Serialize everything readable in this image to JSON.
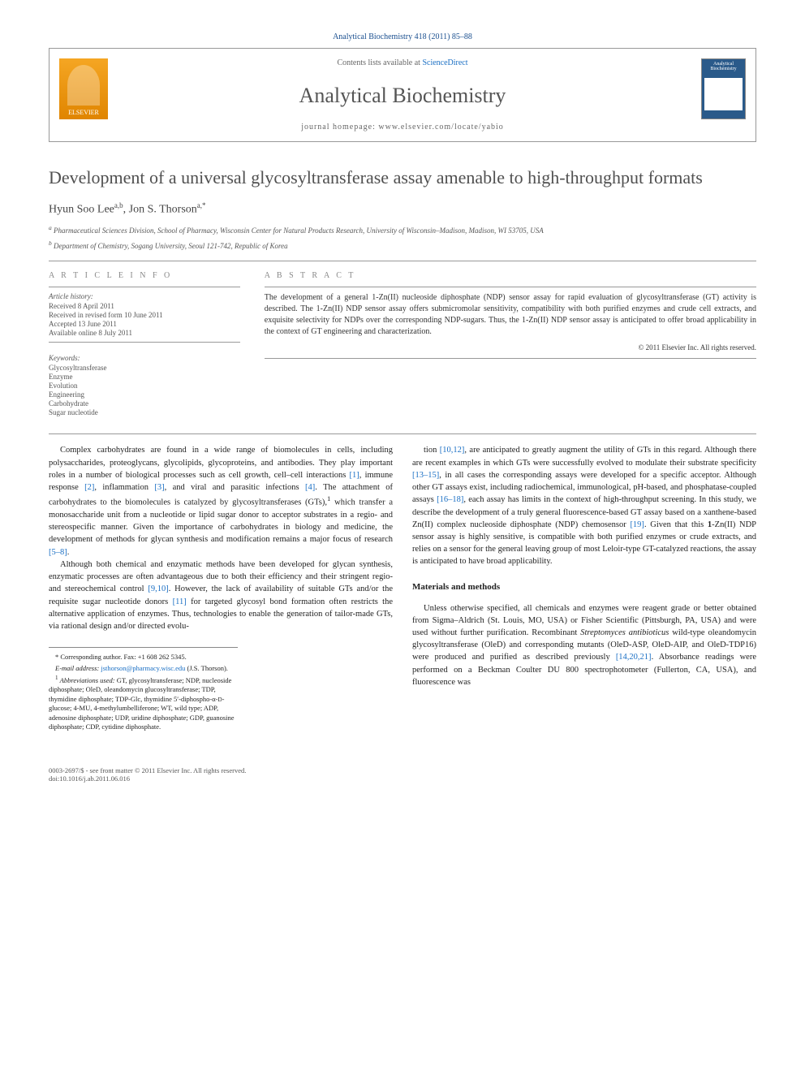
{
  "journal": {
    "citation": "Analytical Biochemistry 418 (2011) 85–88",
    "contents_prefix": "Contents lists available at ",
    "contents_link": "ScienceDirect",
    "name": "Analytical Biochemistry",
    "homepage_label": "journal homepage: www.elsevier.com/locate/yabio",
    "publisher": "ELSEVIER",
    "cover_label": "Analytical Biochemistry"
  },
  "article": {
    "title": "Development of a universal glycosyltransferase assay amenable to high-throughput formats",
    "authors_html": "Hyun Soo Lee",
    "author1": "Hyun Soo Lee",
    "author1_sup": "a,b",
    "author2": "Jon S. Thorson",
    "author2_sup": "a,*",
    "affiliations": {
      "a": "Pharmaceutical Sciences Division, School of Pharmacy, Wisconsin Center for Natural Products Research, University of Wisconsin–Madison, Madison, WI 53705, USA",
      "b": "Department of Chemistry, Sogang University, Seoul 121-742, Republic of Korea"
    }
  },
  "info": {
    "heading": "A R T I C L E   I N F O",
    "history_label": "Article history:",
    "history": [
      "Received 8 April 2011",
      "Received in revised form 10 June 2011",
      "Accepted 13 June 2011",
      "Available online 8 July 2011"
    ],
    "keywords_label": "Keywords:",
    "keywords": [
      "Glycosyltransferase",
      "Enzyme",
      "Evolution",
      "Engineering",
      "Carbohydrate",
      "Sugar nucleotide"
    ]
  },
  "abstract": {
    "heading": "A B S T R A C T",
    "text": "The development of a general 1-Zn(II) nucleoside diphosphate (NDP) sensor assay for rapid evaluation of glycosyltransferase (GT) activity is described. The 1-Zn(II) NDP sensor assay offers submicromolar sensitivity, compatibility with both purified enzymes and crude cell extracts, and exquisite selectivity for NDPs over the corresponding NDP-sugars. Thus, the 1-Zn(II) NDP sensor assay is anticipated to offer broad applicability in the context of GT engineering and characterization.",
    "copyright": "© 2011 Elsevier Inc. All rights reserved."
  },
  "body": {
    "col1_p1": "Complex carbohydrates are found in a wide range of biomolecules in cells, including polysaccharides, proteoglycans, glycolipids, glycoproteins, and antibodies. They play important roles in a number of biological processes such as cell growth, cell–cell interactions [1], immune response [2], inflammation [3], and viral and parasitic infections [4]. The attachment of carbohydrates to the biomolecules is catalyzed by glycosyltransferases (GTs),¹ which transfer a monosaccharide unit from a nucleotide or lipid sugar donor to acceptor substrates in a regio- and stereospecific manner. Given the importance of carbohydrates in biology and medicine, the development of methods for glycan synthesis and modification remains a major focus of research [5–8].",
    "col1_p2": "Although both chemical and enzymatic methods have been developed for glycan synthesis, enzymatic processes are often advantageous due to both their efficiency and their stringent regio- and stereochemical control [9,10]. However, the lack of availability of suitable GTs and/or the requisite sugar nucleotide donors [11] for targeted glycosyl bond formation often restricts the alternative application of enzymes. Thus, technologies to enable the generation of tailor-made GTs, via rational design and/or directed evolu-",
    "col2_p1": "tion [10,12], are anticipated to greatly augment the utility of GTs in this regard. Although there are recent examples in which GTs were successfully evolved to modulate their substrate specificity [13–15], in all cases the corresponding assays were developed for a specific acceptor. Although other GT assays exist, including radiochemical, immunological, pH-based, and phosphatase-coupled assays [16–18], each assay has limits in the context of high-throughput screening. In this study, we describe the development of a truly general fluorescence-based GT assay based on a xanthene-based Zn(II) complex nucleoside diphosphate (NDP) chemosensor [19]. Given that this 1-Zn(II) NDP sensor assay is highly sensitive, is compatible with both purified enzymes or crude extracts, and relies on a sensor for the general leaving group of most Leloir-type GT-catalyzed reactions, the assay is anticipated to have broad applicability.",
    "materials_head": "Materials and methods",
    "col2_p2": "Unless otherwise specified, all chemicals and enzymes were reagent grade or better obtained from Sigma–Aldrich (St. Louis, MO, USA) or Fisher Scientific (Pittsburgh, PA, USA) and were used without further purification. Recombinant Streptomyces antibioticus wild-type oleandomycin glycosyltransferase (OleD) and corresponding mutants (OleD-ASP, OleD-AIP, and OleD-TDP16) were produced and purified as described previously [14,20,21]. Absorbance readings were performed on a Beckman Coulter DU 800 spectrophotometer (Fullerton, CA, USA), and fluorescence was"
  },
  "footnotes": {
    "corr": "* Corresponding author. Fax: +1 608 262 5345.",
    "email_label": "E-mail address:",
    "email": "jsthorson@pharmacy.wisc.edu",
    "email_who": "(J.S. Thorson).",
    "abbrev": "¹ Abbreviations used: GT, glycosyltransferase; NDP, nucleoside diphosphate; OleD, oleandomycin glucosyltransferase; TDP, thymidine diphosphate; TDP-Glc, thymidine 5′-diphospho-α-D-glucose; 4-MU, 4-methylumbelliferone; WT, wild type; ADP, adenosine diphosphate; UDP, uridine diphosphate; GDP, guanosine diphosphate; CDP, cytidine diphosphate."
  },
  "footer": {
    "left1": "0003-2697/$ - see front matter © 2011 Elsevier Inc. All rights reserved.",
    "left2": "doi:10.1016/j.ab.2011.06.016"
  },
  "refs": {
    "r1": "[1]",
    "r2": "[2]",
    "r3": "[3]",
    "r4": "[4]",
    "r58": "[5–8]",
    "r910": "[9,10]",
    "r11": "[11]",
    "r1012": "[10,12]",
    "r1315": "[13–15]",
    "r1618": "[16–18]",
    "r19": "[19]",
    "r142021": "[14,20,21]"
  },
  "colors": {
    "link": "#1a6fc4",
    "header_text": "#1a4f8f",
    "body_text": "#222222",
    "rule": "#999999"
  }
}
